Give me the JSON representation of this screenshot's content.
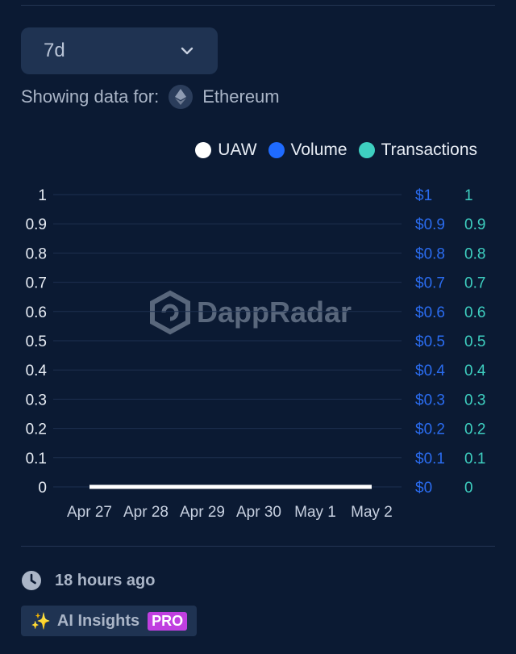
{
  "range_select": {
    "value": "7d"
  },
  "network": {
    "label": "Showing data for:",
    "name": "Ethereum"
  },
  "legend": [
    {
      "label": "UAW",
      "color": "#ffffff"
    },
    {
      "label": "Volume",
      "color": "#1f6bff"
    },
    {
      "label": "Transactions",
      "color": "#3ecfc0"
    }
  ],
  "watermark": "DappRadar",
  "chart_data": {
    "type": "line",
    "categories": [
      "Apr 27",
      "Apr 28",
      "Apr 29",
      "Apr 30",
      "May 1",
      "May 2"
    ],
    "series": [
      {
        "name": "UAW",
        "values": [
          0,
          0,
          0,
          0,
          0,
          0
        ],
        "color": "#ffffff"
      },
      {
        "name": "Volume",
        "values": [
          0,
          0,
          0,
          0,
          0,
          0
        ],
        "color": "#1f6bff"
      },
      {
        "name": "Transactions",
        "values": [
          0,
          0,
          0,
          0,
          0,
          0
        ],
        "color": "#3ecfc0"
      }
    ],
    "ylim": [
      0,
      1
    ],
    "y_left_ticks": [
      "0",
      "0.1",
      "0.2",
      "0.3",
      "0.4",
      "0.5",
      "0.6",
      "0.7",
      "0.8",
      "0.9",
      "1"
    ],
    "y_volume_ticks": [
      "$0",
      "$0.1",
      "$0.2",
      "$0.3",
      "$0.4",
      "$0.5",
      "$0.6",
      "$0.7",
      "$0.8",
      "$0.9",
      "$1"
    ],
    "y_transactions_ticks": [
      "0",
      "0.1",
      "0.2",
      "0.3",
      "0.4",
      "0.5",
      "0.6",
      "0.7",
      "0.8",
      "0.9",
      "1"
    ],
    "grid": true,
    "legend_position": "top-right"
  },
  "footer": {
    "updated": "18 hours ago",
    "ai_label": "AI Insights",
    "ai_icon": "✨",
    "pro_badge": "PRO"
  }
}
